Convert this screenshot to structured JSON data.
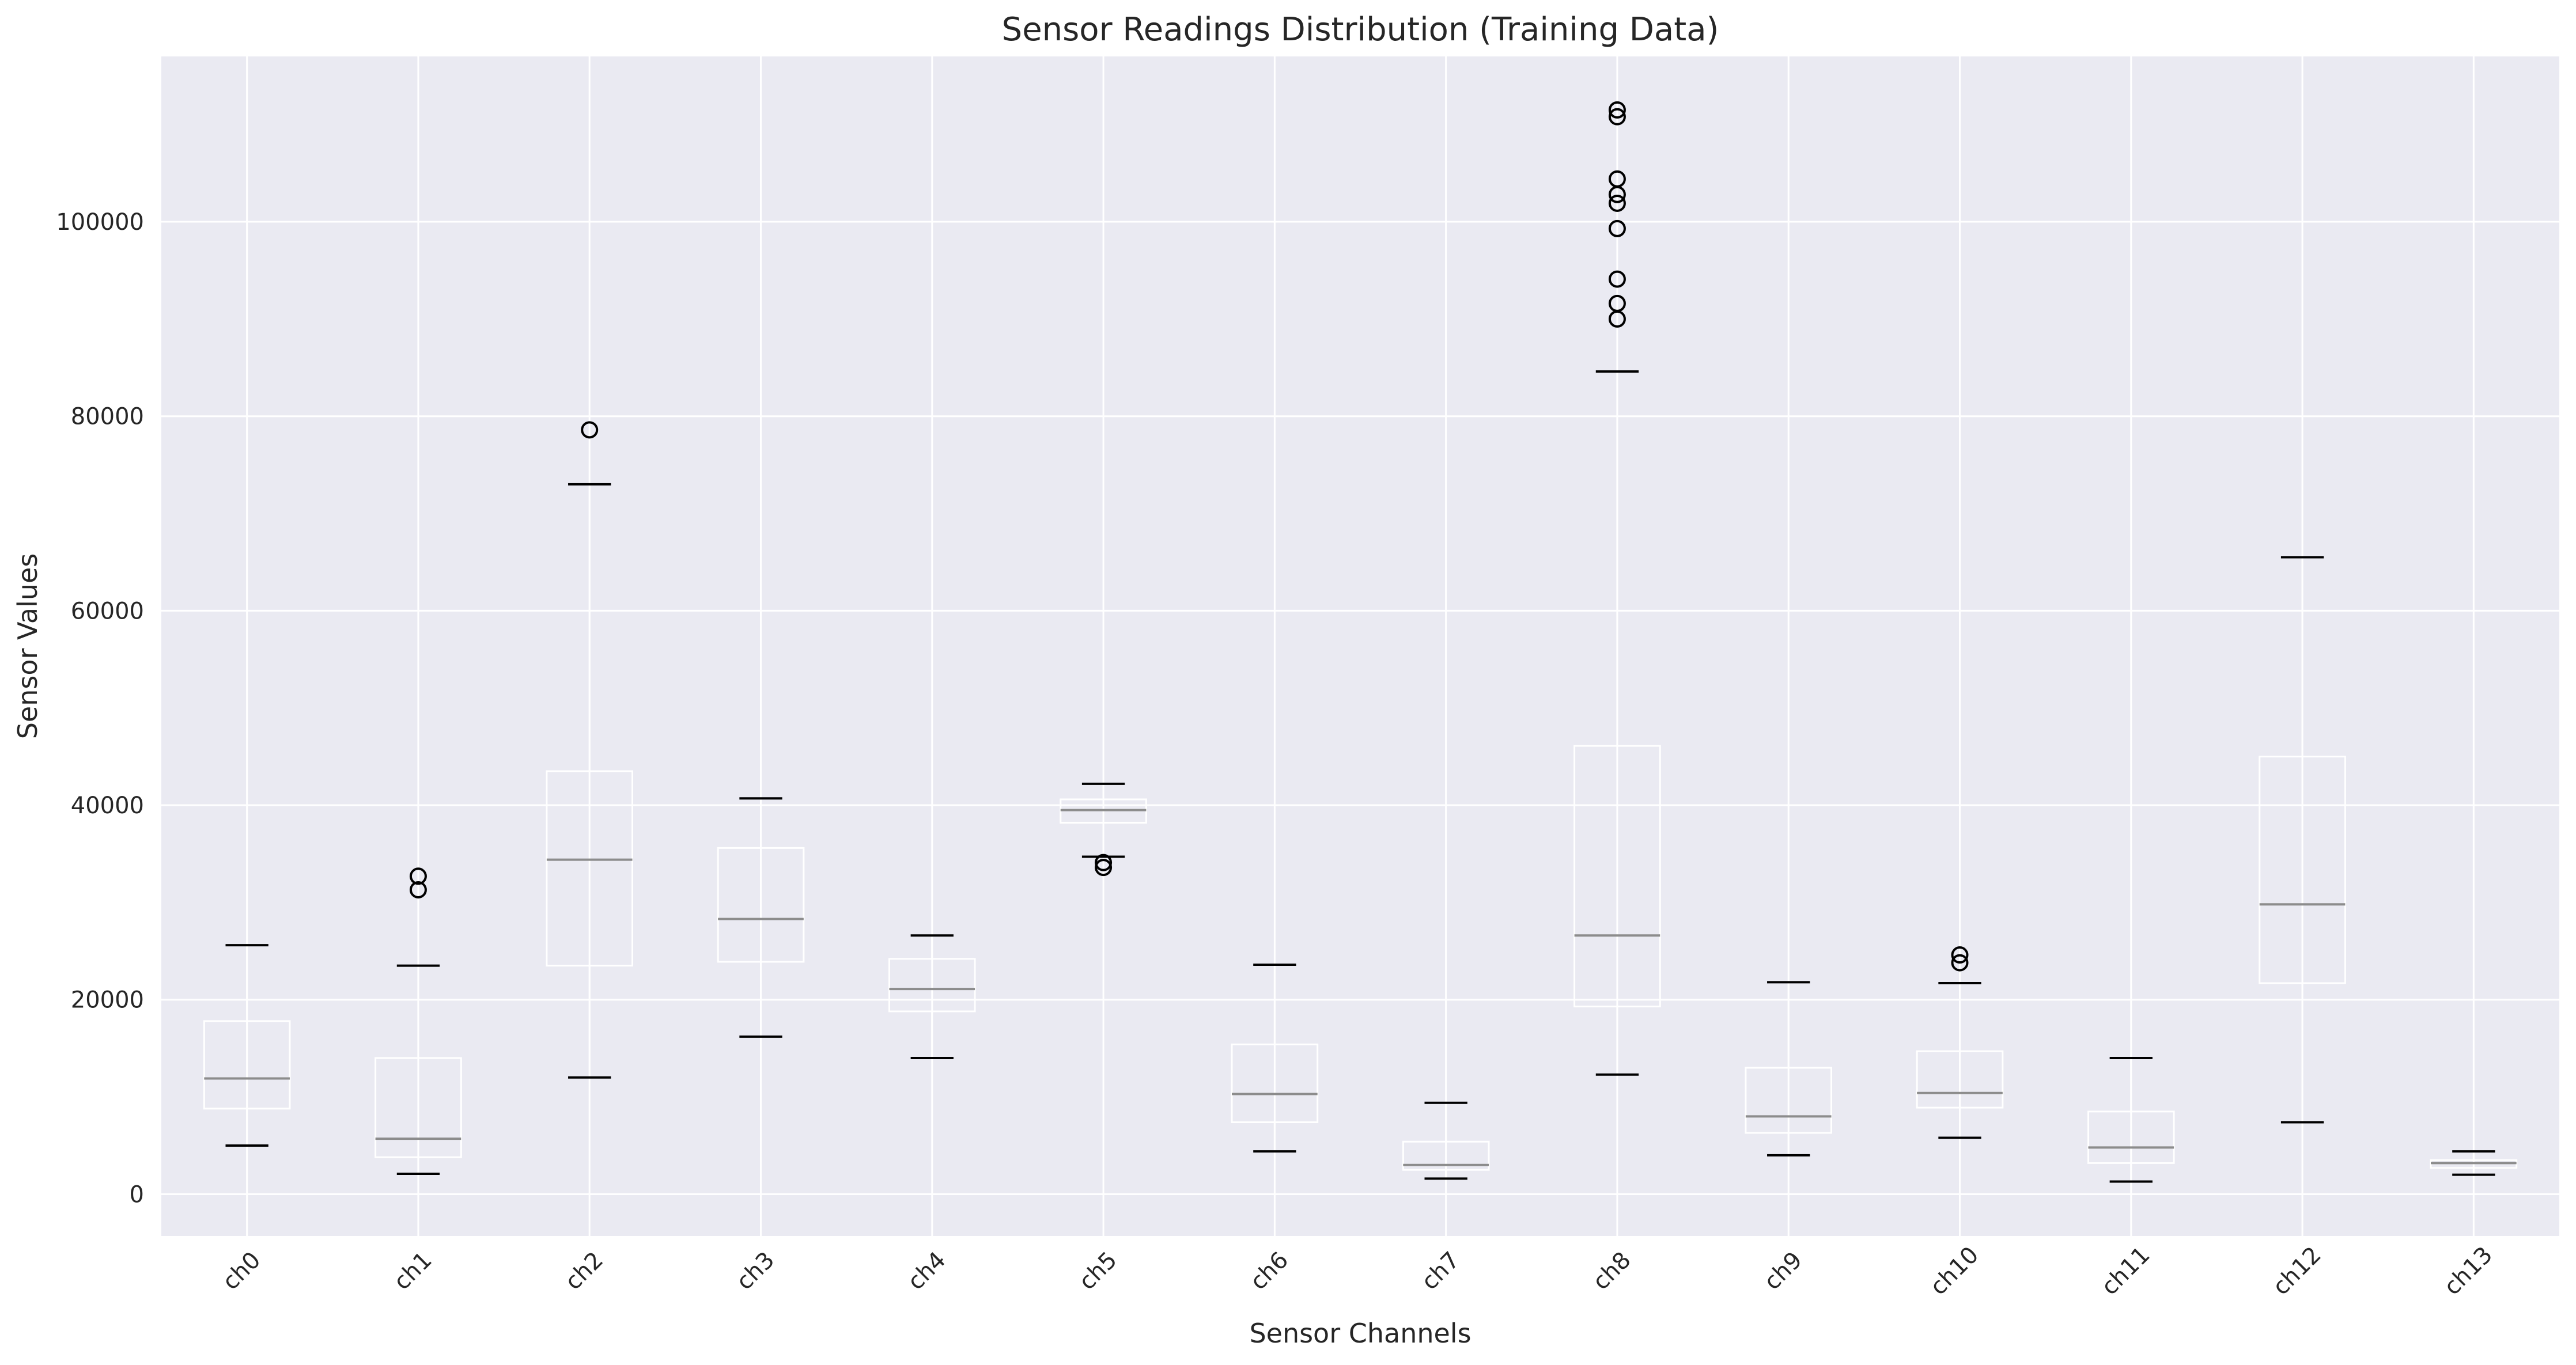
{
  "chart_data": {
    "type": "boxplot",
    "title": "Sensor Readings Distribution (Training Data)",
    "xlabel": "Sensor Channels",
    "ylabel": "Sensor Values",
    "ylim": [
      -4300,
      117000
    ],
    "yticks": [
      0,
      20000,
      40000,
      60000,
      80000,
      100000
    ],
    "ytick_labels": [
      "0",
      "20000",
      "40000",
      "60000",
      "80000",
      "100000"
    ],
    "grid": true,
    "categories": [
      "ch0",
      "ch1",
      "ch2",
      "ch3",
      "ch4",
      "ch5",
      "ch6",
      "ch7",
      "ch8",
      "ch9",
      "ch10",
      "ch11",
      "ch12",
      "ch13"
    ],
    "boxes": [
      {
        "label": "ch0",
        "whislo": 5000,
        "q1": 8800,
        "med": 11900,
        "q3": 17800,
        "whishi": 25600,
        "fliers": []
      },
      {
        "label": "ch1",
        "whislo": 2100,
        "q1": 3800,
        "med": 5700,
        "q3": 14000,
        "whishi": 23500,
        "fliers": [
          31300,
          32700
        ]
      },
      {
        "label": "ch2",
        "whislo": 12000,
        "q1": 23500,
        "med": 34400,
        "q3": 43500,
        "whishi": 73000,
        "fliers": [
          78600
        ]
      },
      {
        "label": "ch3",
        "whislo": 16200,
        "q1": 23900,
        "med": 28300,
        "q3": 35600,
        "whishi": 40700,
        "fliers": []
      },
      {
        "label": "ch4",
        "whislo": 14000,
        "q1": 18800,
        "med": 21100,
        "q3": 24200,
        "whishi": 26600,
        "fliers": []
      },
      {
        "label": "ch5",
        "whislo": 34700,
        "q1": 38200,
        "med": 39500,
        "q3": 40600,
        "whishi": 42200,
        "fliers": [
          34100,
          33600
        ]
      },
      {
        "label": "ch6",
        "whislo": 4400,
        "q1": 7400,
        "med": 10300,
        "q3": 15400,
        "whishi": 23600,
        "fliers": []
      },
      {
        "label": "ch7",
        "whislo": 1600,
        "q1": 2500,
        "med": 3000,
        "q3": 5400,
        "whishi": 9400,
        "fliers": []
      },
      {
        "label": "ch8",
        "whislo": 12300,
        "q1": 19300,
        "med": 26600,
        "q3": 46100,
        "whishi": 84600,
        "fliers": [
          90000,
          91600,
          94100,
          99300,
          101900,
          102800,
          104400,
          110800,
          111500
        ]
      },
      {
        "label": "ch9",
        "whislo": 4000,
        "q1": 6300,
        "med": 8000,
        "q3": 13000,
        "whishi": 21800,
        "fliers": []
      },
      {
        "label": "ch10",
        "whislo": 5800,
        "q1": 8900,
        "med": 10400,
        "q3": 14700,
        "whishi": 21700,
        "fliers": [
          23800,
          24600
        ]
      },
      {
        "label": "ch11",
        "whislo": 1300,
        "q1": 3200,
        "med": 4800,
        "q3": 8500,
        "whishi": 14000,
        "fliers": []
      },
      {
        "label": "ch12",
        "whislo": 7400,
        "q1": 21700,
        "med": 29800,
        "q3": 45000,
        "whishi": 65500,
        "fliers": []
      },
      {
        "label": "ch13",
        "whislo": 2000,
        "q1": 2700,
        "med": 3200,
        "q3": 3500,
        "whishi": 4400,
        "fliers": []
      }
    ],
    "colors": {
      "background": "#eaeaf2",
      "grid": "#ffffff",
      "box": "#ffffff",
      "median": "#8c8c8c",
      "whisker": "#ffffff",
      "cap": "#000000",
      "flier": "#000000"
    }
  }
}
